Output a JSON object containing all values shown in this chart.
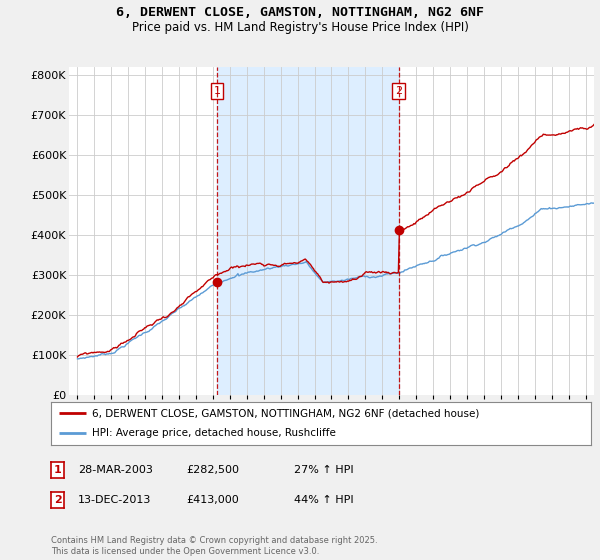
{
  "title": "6, DERWENT CLOSE, GAMSTON, NOTTINGHAM, NG2 6NF",
  "subtitle": "Price paid vs. HM Land Registry's House Price Index (HPI)",
  "ylabel_ticks": [
    "£0",
    "£100K",
    "£200K",
    "£300K",
    "£400K",
    "£500K",
    "£600K",
    "£700K",
    "£800K"
  ],
  "ytick_values": [
    0,
    100000,
    200000,
    300000,
    400000,
    500000,
    600000,
    700000,
    800000
  ],
  "ylim": [
    0,
    820000
  ],
  "xlim_start": 1994.5,
  "xlim_end": 2025.5,
  "hpi_color": "#5b9bd5",
  "price_color": "#c00000",
  "sale1_x": 2003.24,
  "sale1_y": 282500,
  "sale2_x": 2013.96,
  "sale2_y": 413000,
  "shade_color": "#ddeeff",
  "legend_label1": "6, DERWENT CLOSE, GAMSTON, NOTTINGHAM, NG2 6NF (detached house)",
  "legend_label2": "HPI: Average price, detached house, Rushcliffe",
  "transaction1_date": "28-MAR-2003",
  "transaction1_price": "£282,500",
  "transaction1_hpi": "27% ↑ HPI",
  "transaction2_date": "13-DEC-2013",
  "transaction2_price": "£413,000",
  "transaction2_hpi": "44% ↑ HPI",
  "footnote": "Contains HM Land Registry data © Crown copyright and database right 2025.\nThis data is licensed under the Open Government Licence v3.0.",
  "background_color": "#f0f0f0",
  "plot_background": "#ffffff",
  "grid_color": "#cccccc"
}
